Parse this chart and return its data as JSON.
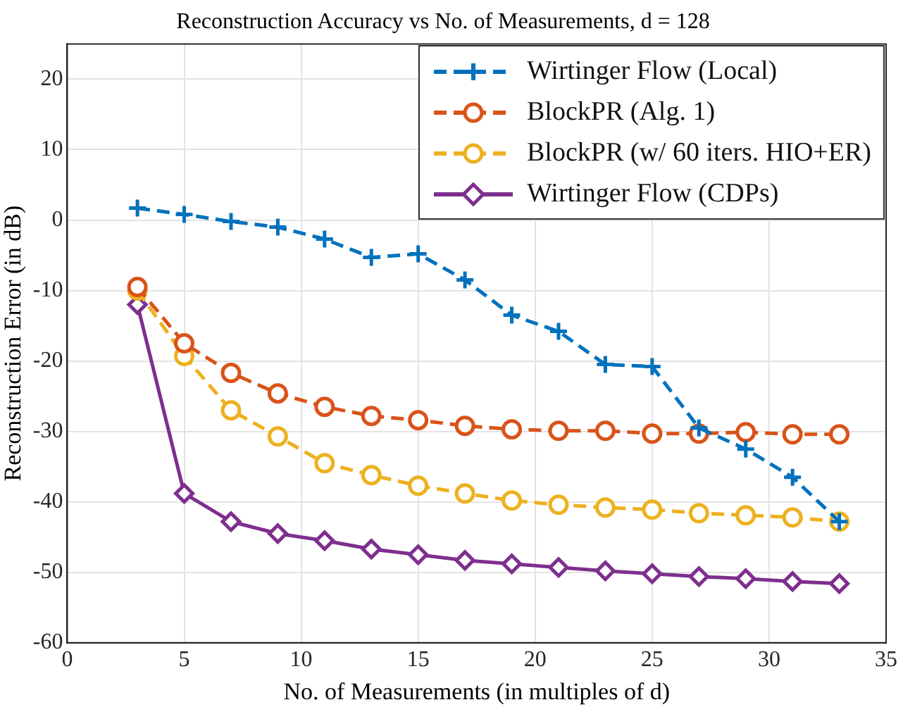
{
  "chart_data": {
    "type": "line",
    "title": "Reconstruction Accuracy vs No. of Measurements, d = 128",
    "xlabel": "No. of Measurements (in multiples of d)",
    "ylabel": "Reconstruction Error (in dB)",
    "x": [
      3,
      5,
      7,
      9,
      11,
      13,
      15,
      17,
      19,
      21,
      23,
      25,
      27,
      29,
      31,
      33
    ],
    "series": [
      {
        "name": "Wirtinger Flow (Local)",
        "color": "#0072bd",
        "marker": "cross",
        "line_style": "dashed",
        "values": [
          1.7,
          0.8,
          -0.2,
          -1,
          -2.7,
          -5.3,
          -4.8,
          -8.5,
          -13.5,
          -15.8,
          -20.5,
          -20.8,
          -29.5,
          -32.5,
          -36.5,
          -42.8
        ]
      },
      {
        "name": "BlockPR (Alg. 1)",
        "color": "#d95319",
        "marker": "circle",
        "line_style": "dashed",
        "values": [
          -9.5,
          -17.5,
          -21.7,
          -24.6,
          -26.5,
          -27.8,
          -28.4,
          -29.2,
          -29.7,
          -29.9,
          -29.9,
          -30.3,
          -30.3,
          -30.1,
          -30.4,
          -30.4
        ]
      },
      {
        "name": "BlockPR (w/ 60 iters. HIO+ER)",
        "color": "#edb120",
        "marker": "circle",
        "line_style": "dashed",
        "values": [
          -10,
          -19.3,
          -27,
          -30.7,
          -34.5,
          -36.2,
          -37.7,
          -38.8,
          -39.8,
          -40.4,
          -40.8,
          -41.1,
          -41.6,
          -41.9,
          -42.2,
          -42.8
        ]
      },
      {
        "name": "Wirtinger Flow (CDPs)",
        "color": "#7e2f8e",
        "marker": "diamond",
        "line_style": "solid",
        "values": [
          -12,
          -38.8,
          -42.8,
          -44.5,
          -45.5,
          -46.7,
          -47.5,
          -48.3,
          -48.8,
          -49.3,
          -49.8,
          -50.2,
          -50.6,
          -50.9,
          -51.3,
          -51.6
        ]
      }
    ],
    "xlim": [
      0,
      35
    ],
    "xticks": [
      0,
      5,
      10,
      15,
      20,
      25,
      30,
      35
    ],
    "ylim": [
      -60,
      25
    ],
    "yticks": [
      -60,
      -50,
      -40,
      -30,
      -20,
      -10,
      0,
      10,
      20
    ],
    "grid": true,
    "legend": "top right"
  }
}
